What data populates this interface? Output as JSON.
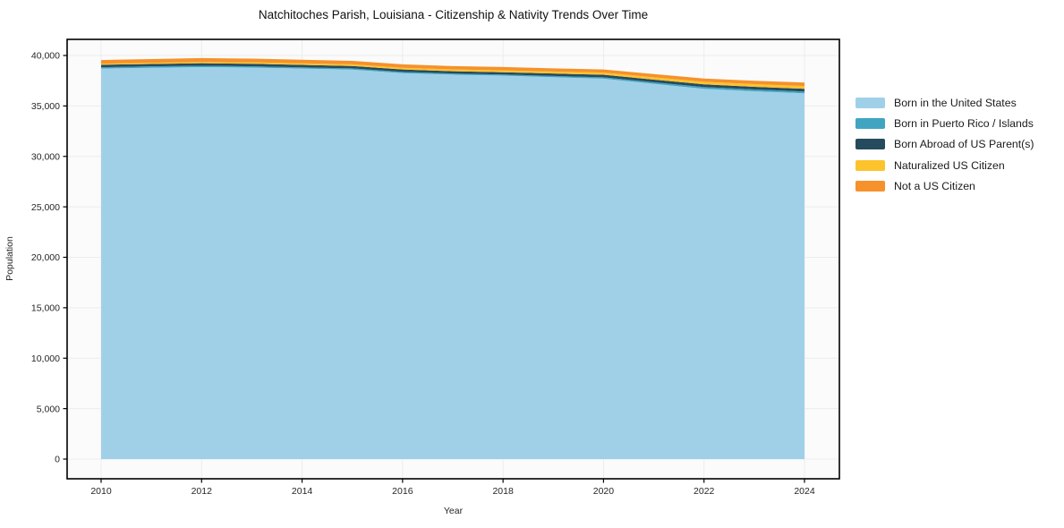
{
  "chart_data": {
    "type": "area",
    "stacked": true,
    "title": "Natchitoches Parish, Louisiana - Citizenship & Nativity Trends Over Time",
    "xlabel": "Year",
    "ylabel": "Population",
    "x": [
      2010,
      2011,
      2012,
      2013,
      2014,
      2015,
      2016,
      2017,
      2018,
      2019,
      2020,
      2021,
      2022,
      2023,
      2024
    ],
    "series": [
      {
        "name": "Born in the United States",
        "color": "#a0d0e8",
        "values": [
          38700,
          38780,
          38850,
          38800,
          38700,
          38600,
          38250,
          38100,
          38000,
          37850,
          37700,
          37200,
          36700,
          36450,
          36250
        ]
      },
      {
        "name": "Born in Puerto Rico / Islands",
        "color": "#41a5c2",
        "values": [
          140,
          140,
          130,
          130,
          120,
          120,
          120,
          110,
          110,
          120,
          140,
          150,
          170,
          180,
          180
        ]
      },
      {
        "name": "Born Abroad of US Parent(s)",
        "color": "#264a5e",
        "values": [
          240,
          240,
          250,
          250,
          250,
          240,
          240,
          230,
          230,
          240,
          250,
          260,
          270,
          270,
          270
        ]
      },
      {
        "name": "Naturalized US Citizen",
        "color": "#fcc32d",
        "values": [
          110,
          120,
          130,
          140,
          150,
          160,
          170,
          180,
          190,
          200,
          210,
          230,
          250,
          260,
          270
        ]
      },
      {
        "name": "Not a US Citizen",
        "color": "#f6912b",
        "values": [
          360,
          370,
          380,
          370,
          360,
          350,
          340,
          330,
          330,
          320,
          310,
          320,
          330,
          340,
          350
        ]
      }
    ],
    "xticks": [
      2010,
      2012,
      2014,
      2016,
      2018,
      2020,
      2022,
      2024
    ],
    "yticks": [
      0,
      5000,
      10000,
      15000,
      20000,
      25000,
      30000,
      35000,
      40000
    ],
    "ytick_labels": [
      "0",
      "5,000",
      "10,000",
      "15,000",
      "20,000",
      "25,000",
      "30,000",
      "35,000",
      "40,000"
    ],
    "xlim": [
      2009.32,
      2024.7
    ],
    "ylim": [
      0,
      40000
    ],
    "grid": true,
    "legend_position": "right outside",
    "colors": {
      "plot_background": "#fbfbfb",
      "grid": "#ececec",
      "spine": "#000000",
      "text": "#262626"
    }
  }
}
